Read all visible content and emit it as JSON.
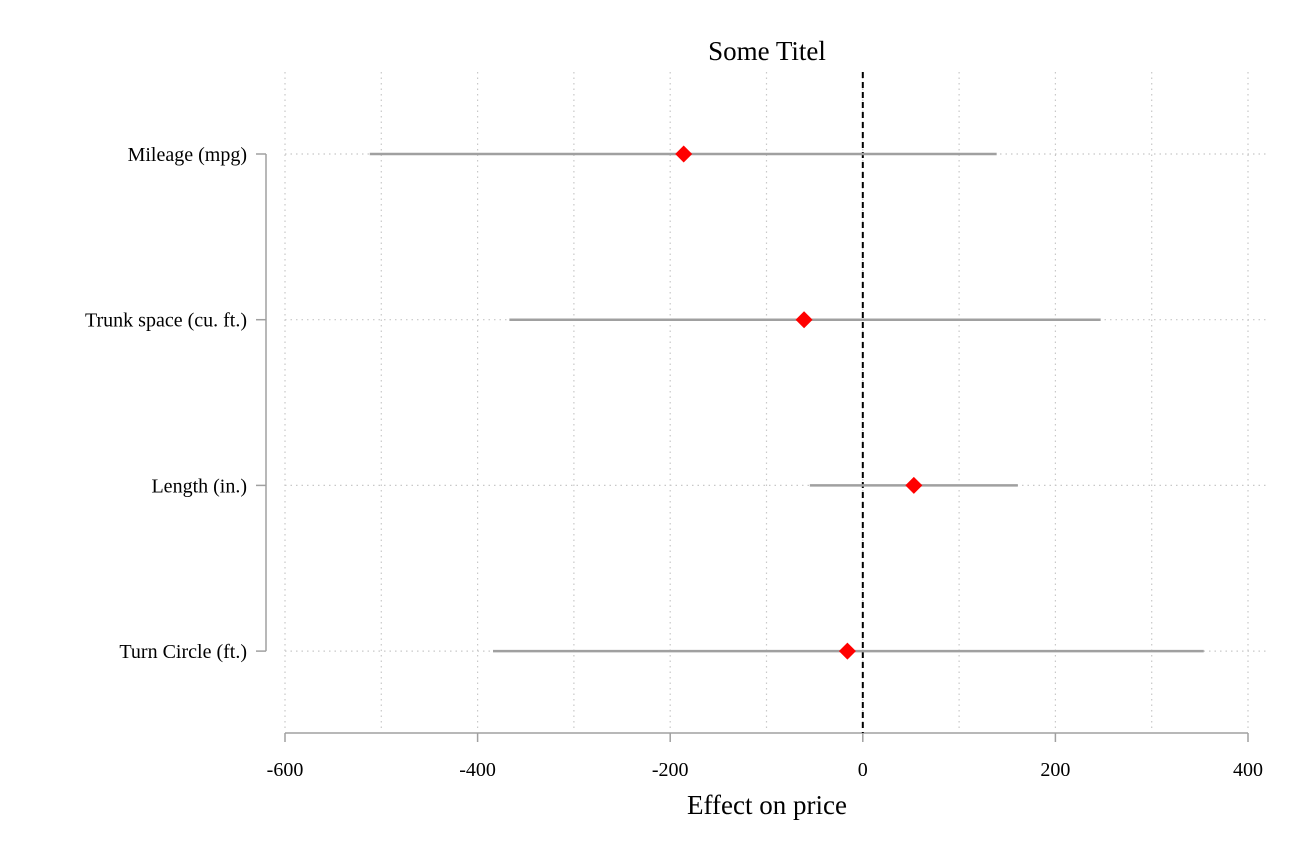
{
  "chart_data": {
    "type": "scatter",
    "subtype": "coefficient-plot",
    "title": "Some Titel",
    "xlabel": "Effect on price",
    "ylabel": "",
    "xlim": [
      -600,
      400
    ],
    "xticks": [
      -600,
      -400,
      -200,
      0,
      200,
      400
    ],
    "grid": true,
    "reference_line": {
      "x": 0,
      "style": "dashed"
    },
    "categories": [
      "Mileage (mpg)",
      "Trunk space (cu. ft.)",
      "Length (in.)",
      "Turn Circle (ft.)"
    ],
    "series": [
      {
        "estimates": [
          -186,
          -61,
          53,
          -16
        ],
        "ci_low": [
          -512,
          -367,
          -55,
          -384
        ],
        "ci_high": [
          139,
          247,
          161,
          354
        ]
      }
    ],
    "colors": {
      "marker": "#ff0000",
      "ci": "#a0a0a0",
      "refline": "#000000",
      "grid": "#c8c8c8",
      "axis": "#a0a0a0"
    }
  }
}
